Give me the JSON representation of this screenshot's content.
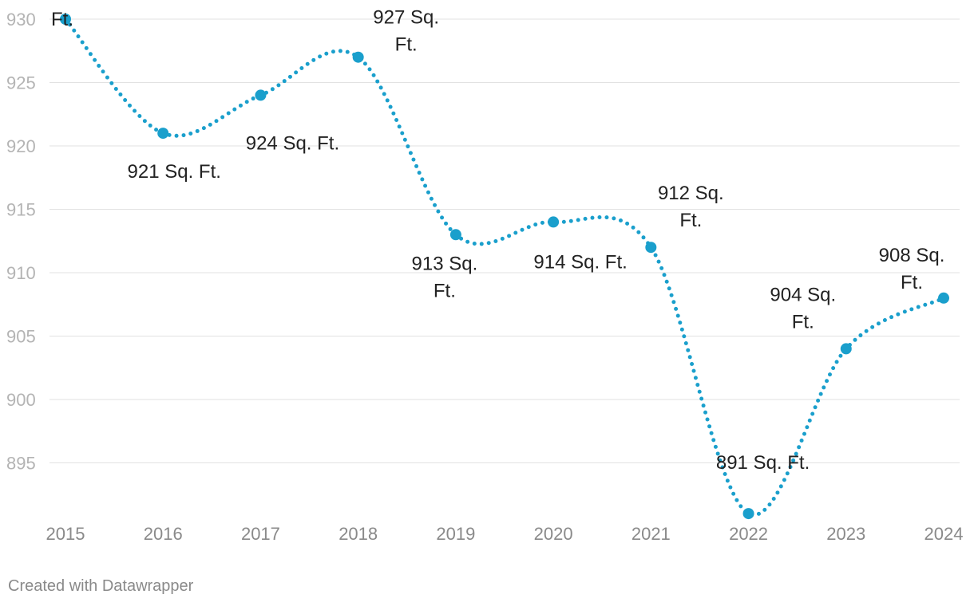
{
  "chart_data": {
    "type": "line",
    "x": [
      "2015",
      "2016",
      "2017",
      "2018",
      "2019",
      "2020",
      "2021",
      "2022",
      "2023",
      "2024"
    ],
    "values": [
      930,
      921,
      924,
      927,
      913,
      914,
      912,
      891,
      904,
      908
    ],
    "data_labels": [
      [
        "Ft."
      ],
      [
        "921 Sq. Ft."
      ],
      [
        "924 Sq. Ft."
      ],
      [
        "927 Sq.",
        "Ft."
      ],
      [
        "913 Sq.",
        "Ft."
      ],
      [
        "914 Sq. Ft."
      ],
      [
        "912 Sq.",
        "Ft."
      ],
      [
        "891 Sq. Ft."
      ],
      [
        "904 Sq.",
        "Ft."
      ],
      [
        "908 Sq.",
        "Ft."
      ]
    ],
    "y_ticks": [
      930,
      925,
      920,
      915,
      910,
      905,
      900,
      895
    ],
    "ylim": [
      890,
      930
    ],
    "grid": true,
    "line_style": "dotted",
    "color": "#1a9fcc",
    "title": "",
    "xlabel": "",
    "ylabel": ""
  },
  "footer": {
    "credit": "Created with Datawrapper"
  }
}
